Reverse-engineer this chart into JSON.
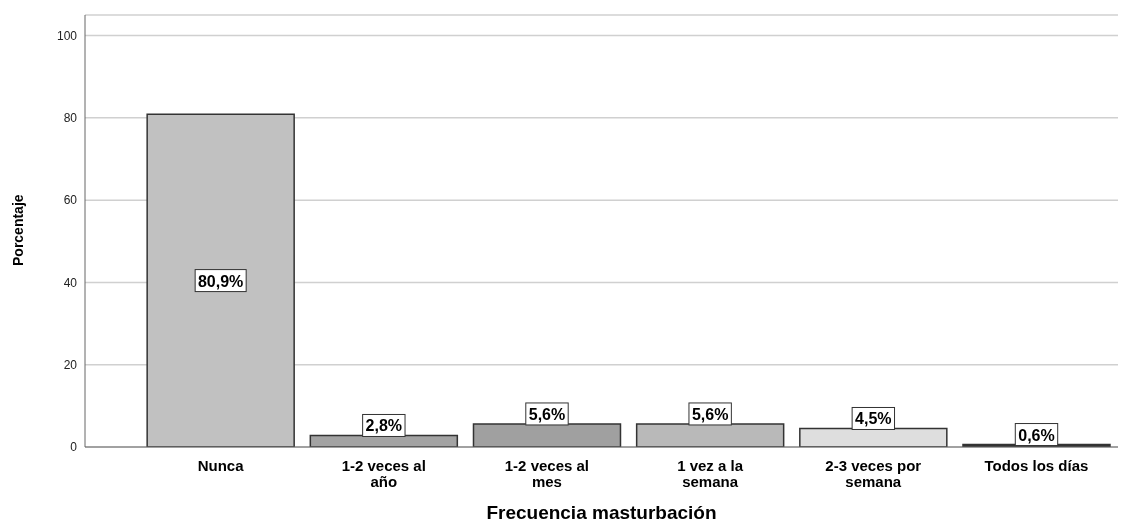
{
  "chart_data": {
    "type": "bar",
    "xlabel": "Frecuencia masturbación",
    "ylabel": "Porcentaje",
    "categories": [
      "Nunca",
      "1-2 veces al año",
      "1-2 veces al mes",
      "1 vez a la semana",
      "2-3 veces por semana",
      "Todos los días"
    ],
    "values": [
      80.9,
      2.8,
      5.6,
      5.6,
      4.5,
      0.6
    ],
    "colors": [
      "#c1c1c1",
      "#a3a3a3",
      "#a0a0a0",
      "#b9b9b9",
      "#dedede",
      "#333333"
    ],
    "value_labels": [
      "80,9%",
      "2,8%",
      "5,6%",
      "5,6%",
      "4,5%",
      "0,6%"
    ],
    "ylim": [
      0,
      105
    ],
    "yticks": [
      0,
      20,
      40,
      60,
      80,
      100
    ],
    "grid": "y"
  }
}
